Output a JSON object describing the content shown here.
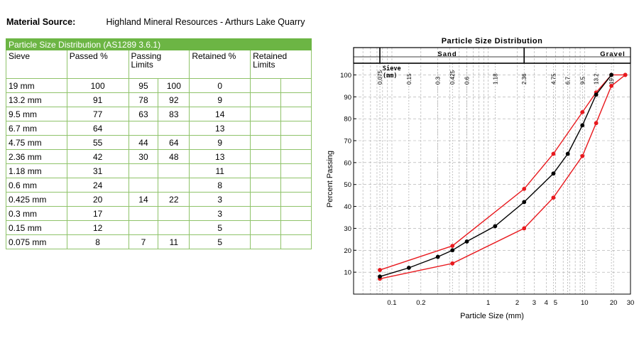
{
  "header": {
    "material_label": "Material Source:",
    "material_value": "Highland Mineral Resources - Arthurs Lake Quarry"
  },
  "table": {
    "title": "Particle Size Distribution (AS1289 3.6.1)",
    "columns": [
      "Sieve",
      "Passed %",
      "Passing\nLimits",
      "Retained %",
      "Retained\nLimits"
    ],
    "rows": [
      {
        "sieve": "19 mm",
        "passed": "100",
        "lim_lo": "95",
        "lim_hi": "100",
        "retained": "0"
      },
      {
        "sieve": "13.2 mm",
        "passed": "91",
        "lim_lo": "78",
        "lim_hi": "92",
        "retained": "9"
      },
      {
        "sieve": "9.5 mm",
        "passed": "77",
        "lim_lo": "63",
        "lim_hi": "83",
        "retained": "14"
      },
      {
        "sieve": "6.7 mm",
        "passed": "64",
        "lim_lo": "",
        "lim_hi": "",
        "retained": "13"
      },
      {
        "sieve": "4.75 mm",
        "passed": "55",
        "lim_lo": "44",
        "lim_hi": "64",
        "retained": "9"
      },
      {
        "sieve": "2.36 mm",
        "passed": "42",
        "lim_lo": "30",
        "lim_hi": "48",
        "retained": "13"
      },
      {
        "sieve": "1.18 mm",
        "passed": "31",
        "lim_lo": "",
        "lim_hi": "",
        "retained": "11"
      },
      {
        "sieve": "0.6 mm",
        "passed": "24",
        "lim_lo": "",
        "lim_hi": "",
        "retained": "8"
      },
      {
        "sieve": "0.425 mm",
        "passed": "20",
        "lim_lo": "14",
        "lim_hi": "22",
        "retained": "3"
      },
      {
        "sieve": "0.3 mm",
        "passed": "17",
        "lim_lo": "",
        "lim_hi": "",
        "retained": "3"
      },
      {
        "sieve": "0.15 mm",
        "passed": "12",
        "lim_lo": "",
        "lim_hi": "",
        "retained": "5"
      },
      {
        "sieve": "0.075 mm",
        "passed": "8",
        "lim_lo": "7",
        "lim_hi": "11",
        "retained": "5"
      }
    ]
  },
  "chart_data": {
    "type": "line",
    "title": "Particle Size Distribution",
    "xlabel": "Particle Size (mm)",
    "ylabel": "Percent Passing",
    "x_scale": "log",
    "xlim": [
      0.04,
      30
    ],
    "ylim": [
      0,
      105
    ],
    "x_ticks": [
      0.1,
      0.2,
      1,
      2,
      3,
      4,
      5,
      10,
      20,
      30
    ],
    "x_tick_labels": [
      "0.1",
      "0.2",
      "1",
      "2",
      "3",
      "4",
      "5",
      "10",
      "20",
      "30"
    ],
    "y_ticks": [
      10,
      20,
      30,
      40,
      50,
      60,
      70,
      80,
      90,
      100
    ],
    "y_tick_labels": [
      "10",
      "20",
      "30",
      "40",
      "50",
      "60",
      "70",
      "80",
      "90",
      "100"
    ],
    "sieve_sizes": [
      0.075,
      0.15,
      0.3,
      0.425,
      0.6,
      1.18,
      2.36,
      4.75,
      6.7,
      9.5,
      13.2,
      19
    ],
    "sieve_labels": [
      "0.075",
      "0.15",
      "0.3",
      "0.425",
      "0.6",
      "1.18",
      "2.36",
      "4.75",
      "6.7",
      "9.5",
      "13.2",
      "19"
    ],
    "sieve_header": "Sieve\n(mm)",
    "zones": [
      {
        "label": "Sand",
        "from": 0.075,
        "to": 2.36
      },
      {
        "label": "Gravel",
        "from": 2.36,
        "to": 30
      }
    ],
    "grid": true,
    "series": [
      {
        "name": "",
        "color": "#000000",
        "x": [
          0.075,
          0.15,
          0.3,
          0.425,
          0.6,
          1.18,
          2.36,
          4.75,
          6.7,
          9.5,
          13.2,
          19
        ],
        "values": [
          8,
          12,
          17,
          20,
          24,
          31,
          42,
          55,
          64,
          77,
          91,
          100
        ]
      },
      {
        "name": "",
        "color": "#e8191e",
        "x": [
          0.075,
          0.425,
          2.36,
          4.75,
          9.5,
          13.2,
          19,
          26.5
        ],
        "values": [
          11,
          22,
          48,
          64,
          83,
          92,
          100,
          100
        ]
      },
      {
        "name": "",
        "color": "#e8191e",
        "x": [
          0.075,
          0.425,
          2.36,
          4.75,
          9.5,
          13.2,
          19,
          26.5
        ],
        "values": [
          7,
          14,
          30,
          44,
          63,
          78,
          95,
          100
        ]
      }
    ]
  }
}
